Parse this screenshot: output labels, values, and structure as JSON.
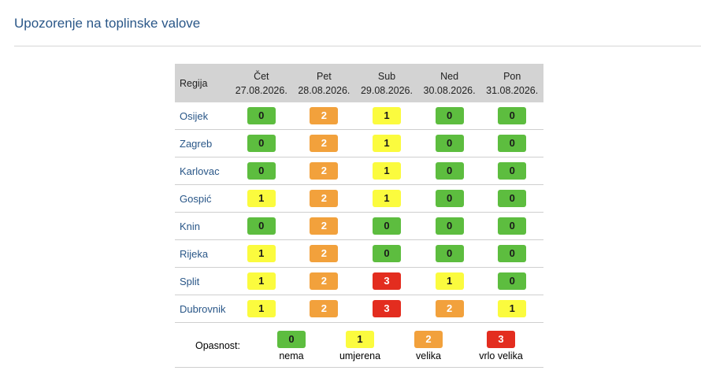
{
  "page": {
    "title": "Upozorenje na toplinske valove"
  },
  "table": {
    "region_header": "Regija",
    "days": [
      {
        "day": "Čet",
        "date": "27.08.2026."
      },
      {
        "day": "Pet",
        "date": "28.08.2026."
      },
      {
        "day": "Sub",
        "date": "29.08.2026."
      },
      {
        "day": "Ned",
        "date": "30.08.2026."
      },
      {
        "day": "Pon",
        "date": "31.08.2026."
      }
    ],
    "rows": [
      {
        "region": "Osijek",
        "levels": [
          "0",
          "2",
          "1",
          "0",
          "0"
        ]
      },
      {
        "region": "Zagreb",
        "levels": [
          "0",
          "2",
          "1",
          "0",
          "0"
        ]
      },
      {
        "region": "Karlovac",
        "levels": [
          "0",
          "2",
          "1",
          "0",
          "0"
        ]
      },
      {
        "region": "Gospić",
        "levels": [
          "1",
          "2",
          "1",
          "0",
          "0"
        ]
      },
      {
        "region": "Knin",
        "levels": [
          "0",
          "2",
          "0",
          "0",
          "0"
        ]
      },
      {
        "region": "Rijeka",
        "levels": [
          "1",
          "2",
          "0",
          "0",
          "0"
        ]
      },
      {
        "region": "Split",
        "levels": [
          "1",
          "2",
          "3",
          "1",
          "0"
        ]
      },
      {
        "region": "Dubrovnik",
        "levels": [
          "1",
          "2",
          "3",
          "2",
          "1"
        ]
      }
    ]
  },
  "legend": {
    "label": "Opasnost:",
    "items": [
      {
        "level": "0",
        "text": "nema"
      },
      {
        "level": "1",
        "text": "umjerena"
      },
      {
        "level": "2",
        "text": "velika"
      },
      {
        "level": "3",
        "text": "vrlo velika"
      }
    ]
  },
  "colors": {
    "level_0": "#5dbd3f",
    "level_1": "#fbfb3e",
    "level_2": "#f2a13c",
    "level_3": "#e32d1f",
    "title": "#2a5788",
    "header_bg": "#d3d3d3"
  }
}
